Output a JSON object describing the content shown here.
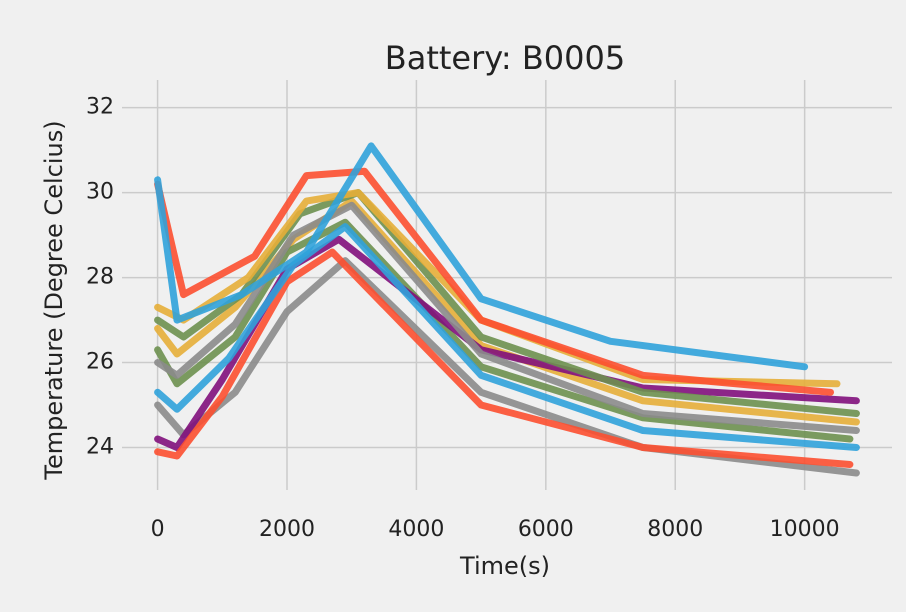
{
  "chart_data": {
    "type": "line",
    "title": "Battery: B0005",
    "xlabel": "Time(s)",
    "ylabel": "Temperature (Degree Celcius)",
    "xlim": [
      -550,
      11350
    ],
    "ylim": [
      23,
      32.65
    ],
    "xticks": [
      0,
      2000,
      4000,
      6000,
      8000,
      10000
    ],
    "yticks": [
      24,
      26,
      28,
      30,
      32
    ],
    "grid": true,
    "series": [
      {
        "color": "#8b8b8b",
        "x": [
          0,
          400,
          1200,
          2000,
          2900,
          5000,
          7500,
          10800
        ],
        "values": [
          25.0,
          24.3,
          25.3,
          27.2,
          28.4,
          25.3,
          24.0,
          23.4
        ]
      },
      {
        "color": "#e5ae38",
        "x": [
          0,
          300,
          1200,
          2100,
          3000,
          5000,
          7500,
          10800
        ],
        "values": [
          26.8,
          26.2,
          27.3,
          28.9,
          29.8,
          26.4,
          25.1,
          24.6
        ]
      },
      {
        "color": "#6d904f",
        "x": [
          0,
          300,
          1200,
          2000,
          2900,
          5000,
          7500,
          10700
        ],
        "values": [
          26.3,
          25.5,
          26.6,
          28.6,
          29.3,
          25.9,
          24.7,
          24.2
        ]
      },
      {
        "color": "#810f7c",
        "x": [
          0,
          300,
          1000,
          2000,
          2800,
          5000,
          7500,
          10800
        ],
        "values": [
          24.2,
          24.0,
          25.6,
          28.2,
          28.9,
          26.3,
          25.4,
          25.1
        ]
      },
      {
        "color": "#fc4f30",
        "x": [
          0,
          300,
          1000,
          2000,
          2700,
          5000,
          7500,
          10700
        ],
        "values": [
          23.9,
          23.8,
          25.2,
          27.9,
          28.6,
          25.0,
          24.0,
          23.6
        ]
      },
      {
        "color": "#30a2da",
        "x": [
          0,
          300,
          1100,
          2100,
          2900,
          5000,
          7500,
          10800
        ],
        "values": [
          25.3,
          24.9,
          26.1,
          28.3,
          29.2,
          25.7,
          24.4,
          24.0
        ]
      },
      {
        "color": "#8b8b8b",
        "x": [
          0,
          300,
          1200,
          2100,
          3000,
          5000,
          7500,
          10800
        ],
        "values": [
          26.0,
          25.7,
          26.9,
          29.0,
          29.7,
          26.2,
          24.8,
          24.4
        ]
      },
      {
        "color": "#6d904f",
        "x": [
          0,
          400,
          1300,
          2200,
          3100,
          5000,
          7500,
          10800
        ],
        "values": [
          27.0,
          26.6,
          27.6,
          29.5,
          30.0,
          26.6,
          25.3,
          24.8
        ]
      },
      {
        "color": "#e5ae38",
        "x": [
          0,
          400,
          1400,
          2300,
          3100,
          5000,
          7500,
          10500
        ],
        "values": [
          27.3,
          27.0,
          28.0,
          29.8,
          30.0,
          27.0,
          25.6,
          25.5
        ]
      },
      {
        "color": "#fc4f30",
        "x": [
          0,
          400,
          1500,
          2300,
          3200,
          5000,
          7500,
          10400
        ],
        "values": [
          30.2,
          27.6,
          28.5,
          30.4,
          30.5,
          27.0,
          25.7,
          25.3
        ]
      },
      {
        "color": "#30a2da",
        "x": [
          0,
          300,
          1300,
          2300,
          3300,
          5000,
          7000,
          10000
        ],
        "values": [
          30.3,
          27.0,
          27.6,
          28.6,
          31.1,
          27.5,
          26.5,
          25.9
        ]
      }
    ]
  }
}
